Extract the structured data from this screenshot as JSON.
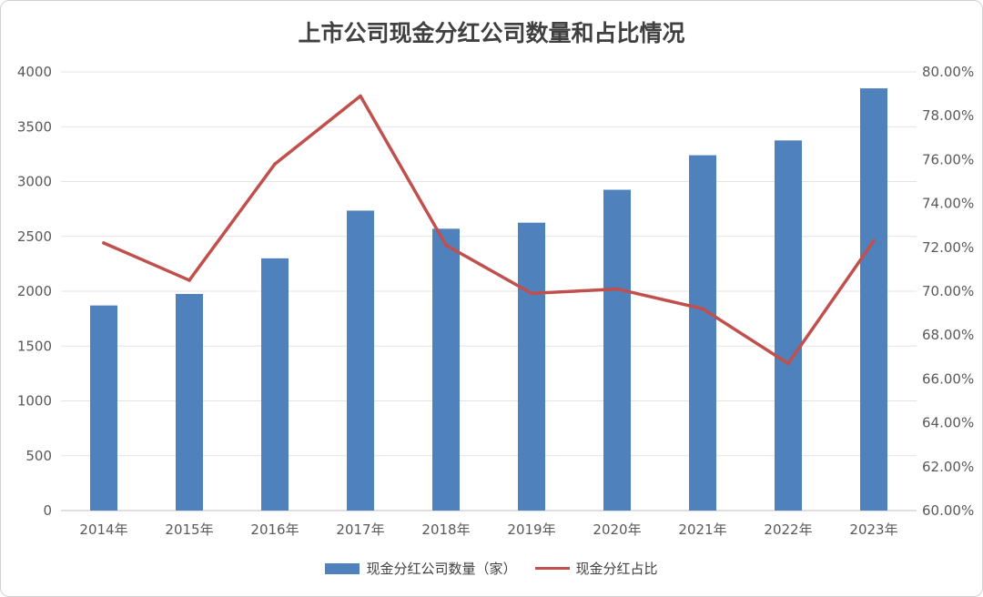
{
  "chart_data": {
    "type": "bar",
    "title": "上市公司现金分红公司数量和占比情况",
    "categories": [
      "2014年",
      "2015年",
      "2016年",
      "2017年",
      "2018年",
      "2019年",
      "2020年",
      "2021年",
      "2022年",
      "2023年"
    ],
    "series": [
      {
        "name": "现金分红公司数量（家）",
        "type": "bar",
        "axis": "left",
        "color": "#4f81bd",
        "values": [
          1870,
          1975,
          2300,
          2735,
          2570,
          2625,
          2925,
          3240,
          3375,
          3850
        ]
      },
      {
        "name": "现金分红占比",
        "type": "line",
        "axis": "right",
        "color": "#c0504d",
        "values": [
          72.2,
          70.5,
          75.8,
          78.9,
          72.1,
          69.9,
          70.1,
          69.2,
          66.7,
          72.3
        ]
      }
    ],
    "y_left": {
      "min": 0,
      "max": 4000,
      "step": 500,
      "ticks": [
        "0",
        "500",
        "1000",
        "1500",
        "2000",
        "2500",
        "3000",
        "3500",
        "4000"
      ]
    },
    "y_right": {
      "min": 60,
      "max": 80,
      "step": 2,
      "ticks": [
        "60.00%",
        "62.00%",
        "64.00%",
        "66.00%",
        "68.00%",
        "70.00%",
        "72.00%",
        "74.00%",
        "76.00%",
        "78.00%",
        "80.00%"
      ]
    },
    "grid": true,
    "legend_position": "bottom"
  }
}
